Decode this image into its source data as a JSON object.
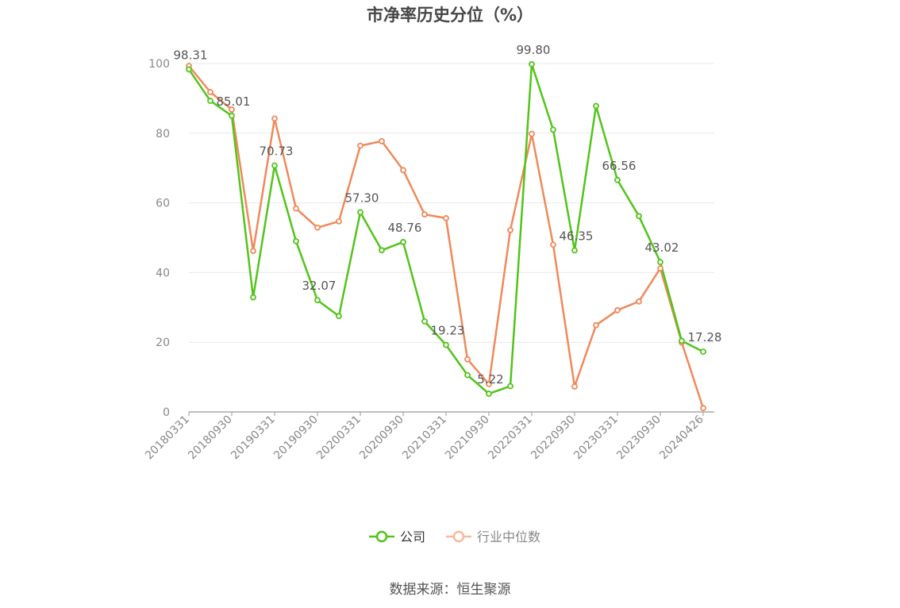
{
  "chart_data": {
    "type": "line",
    "title": "市净率历史分位（%）",
    "source": "数据来源：恒生聚源",
    "ylim": [
      0,
      100
    ],
    "yticks": [
      0,
      20,
      40,
      60,
      80,
      100
    ],
    "x": [
      "20180331",
      "20180630",
      "20180930",
      "20181231",
      "20190331",
      "20190630",
      "20190930",
      "20191231",
      "20200331",
      "20200630",
      "20200930",
      "20201231",
      "20210331",
      "20210630",
      "20210930",
      "20211231",
      "20220331",
      "20220630",
      "20220930",
      "20221231",
      "20230331",
      "20230630",
      "20230930",
      "20231231",
      "20240426"
    ],
    "xtick_labels": [
      "20180331",
      "20180930",
      "20190331",
      "20190930",
      "20200331",
      "20200930",
      "20210331",
      "20210930",
      "20220331",
      "20220930",
      "20230331",
      "20230930",
      "20240426"
    ],
    "series": [
      {
        "name": "公司",
        "color": "#52c41a",
        "values": [
          98.31,
          89.3,
          85.01,
          32.9,
          70.73,
          49.0,
          32.07,
          27.5,
          57.3,
          46.4,
          48.76,
          26.0,
          19.23,
          10.6,
          5.22,
          7.4,
          99.8,
          81.0,
          46.35,
          87.8,
          66.56,
          56.2,
          43.02,
          20.4,
          17.28
        ],
        "labels": {
          "0": "98.31",
          "2": "85.01",
          "4": "70.73",
          "6": "32.07",
          "8": "57.30",
          "10": "48.76",
          "12": "19.23",
          "14": "5.22",
          "16": "99.80",
          "18": "46.35",
          "20": "66.56",
          "22": "43.02",
          "24": "17.28"
        }
      },
      {
        "name": "行业中位数",
        "color": "#f0895a",
        "values": [
          99.3,
          91.8,
          86.8,
          46.2,
          84.2,
          58.4,
          52.9,
          54.7,
          76.4,
          77.7,
          69.4,
          56.7,
          55.6,
          15.1,
          8.0,
          52.2,
          79.8,
          48.0,
          7.3,
          24.9,
          29.2,
          31.7,
          41.2,
          19.9,
          1.1
        ]
      }
    ],
    "legend": {
      "position": "bottom-center"
    }
  }
}
